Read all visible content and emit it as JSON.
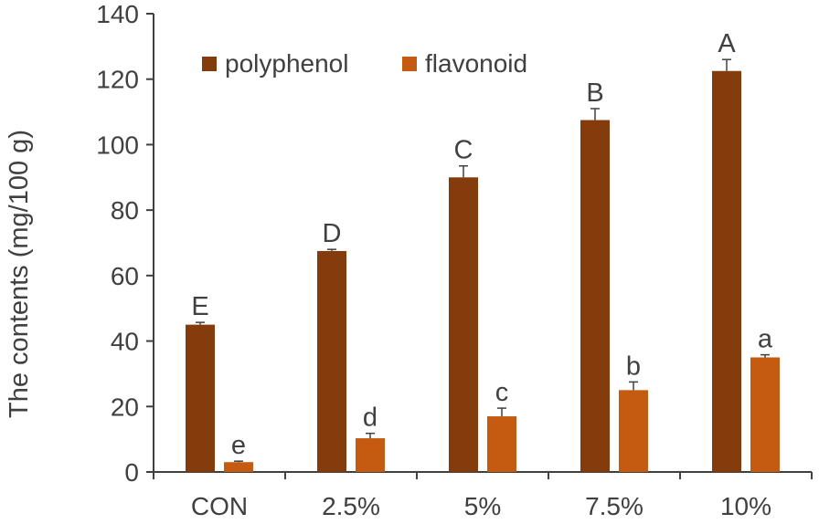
{
  "chart_data": {
    "type": "bar",
    "title": "",
    "xlabel": "",
    "ylabel": "The contents (mg/100  g)",
    "ylim": [
      0,
      140
    ],
    "yticks": [
      0,
      20,
      40,
      60,
      80,
      100,
      120,
      140
    ],
    "grid": false,
    "legend_position": "top-left",
    "categories": [
      "CON",
      "2.5%",
      "5%",
      "7.5%",
      "10%"
    ],
    "series": [
      {
        "name": "polyphenol",
        "color": "#843C0C",
        "values": [
          45.0,
          67.5,
          90.0,
          107.5,
          122.5
        ],
        "errors": [
          0.7,
          0.5,
          3.5,
          3.5,
          3.5
        ],
        "labels": [
          "E",
          "D",
          "C",
          "B",
          "A"
        ]
      },
      {
        "name": "flavonoid",
        "color": "#C55A11",
        "values": [
          3.0,
          10.3,
          17.0,
          25.0,
          35.0
        ],
        "errors": [
          0.3,
          1.5,
          2.5,
          2.5,
          0.8
        ],
        "labels": [
          "e",
          "d",
          "c",
          "b",
          "a"
        ]
      }
    ]
  }
}
